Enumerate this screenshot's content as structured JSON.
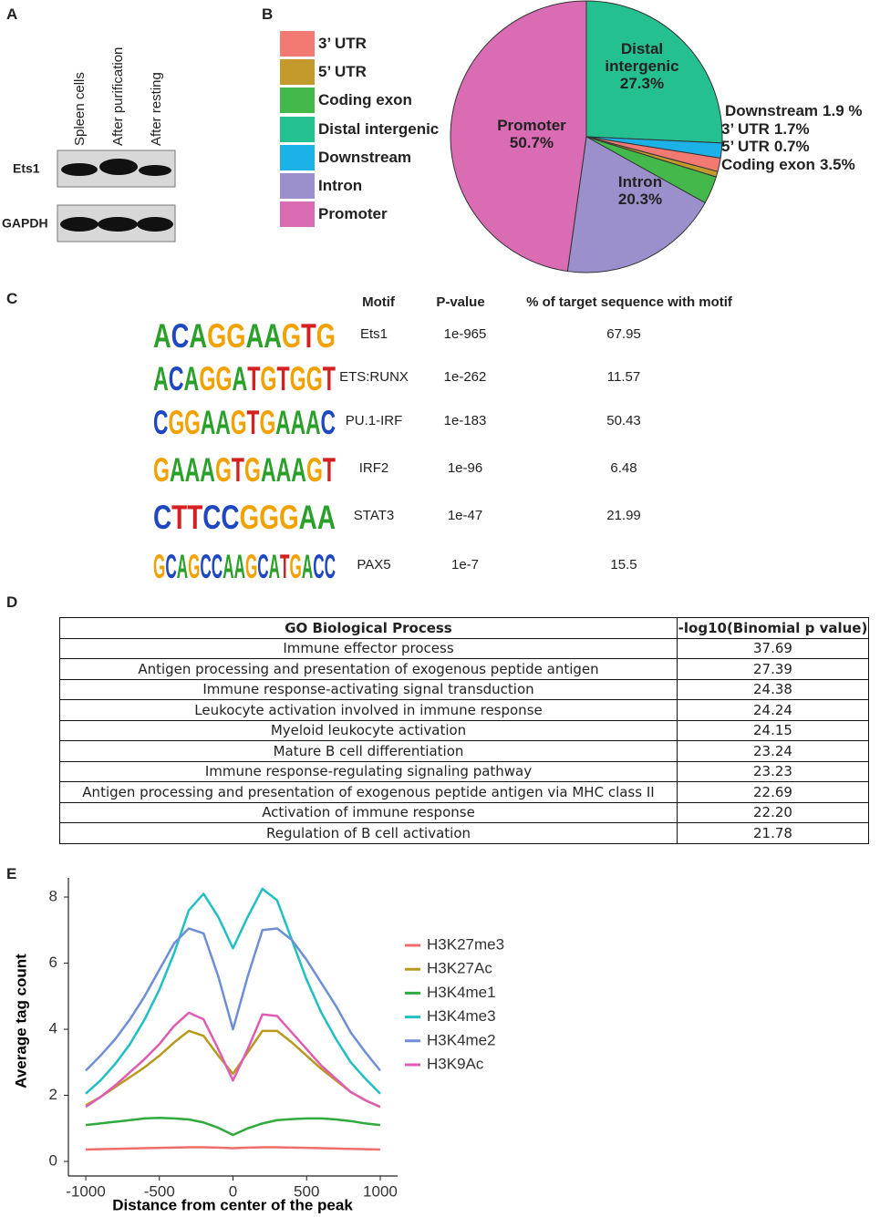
{
  "panels": [
    "A",
    "B",
    "C",
    "D",
    "E"
  ],
  "western_blot": {
    "lanes": [
      "Spleen cells",
      "After purification",
      "After resting"
    ],
    "rows": [
      "Ets1",
      "GAPDH"
    ]
  },
  "chart_data": [
    {
      "type": "pie",
      "categories": [
        "Distal intergenic",
        "Downstream",
        "3’ UTR",
        "5’ UTR",
        "Coding exon",
        "Intron",
        "Promoter"
      ],
      "values": [
        27.3,
        1.9,
        1.7,
        0.7,
        3.5,
        20.3,
        50.7
      ],
      "value_labels": [
        "27.3%",
        "1.9 %",
        "1.7%",
        "0.7%",
        "3.5%",
        "20.3%",
        "50.7%"
      ],
      "colors": [
        "#24c08f",
        "#1cb2e8",
        "#f27a72",
        "#c49a2c",
        "#45b84b",
        "#9c90cc",
        "#d96cb2"
      ],
      "legend": "left"
    },
    {
      "type": "line",
      "x": [
        -1000,
        -900,
        -800,
        -700,
        -600,
        -500,
        -400,
        -300,
        -200,
        -100,
        0,
        100,
        200,
        300,
        400,
        500,
        600,
        700,
        800,
        900,
        1000
      ],
      "series": [
        {
          "name": "H3K27me3",
          "color": "#f06e6a",
          "values": [
            0.36,
            0.37,
            0.38,
            0.39,
            0.4,
            0.41,
            0.42,
            0.43,
            0.43,
            0.42,
            0.4,
            0.42,
            0.43,
            0.43,
            0.42,
            0.41,
            0.4,
            0.39,
            0.38,
            0.37,
            0.36
          ]
        },
        {
          "name": "H3K27Ac",
          "color": "#b89a1e",
          "values": [
            1.7,
            1.95,
            2.25,
            2.55,
            2.85,
            3.2,
            3.6,
            3.95,
            3.8,
            3.2,
            2.65,
            3.3,
            3.95,
            3.95,
            3.6,
            3.2,
            2.8,
            2.45,
            2.1,
            1.85,
            1.65
          ]
        },
        {
          "name": "H3K4me1",
          "color": "#2eab3c",
          "values": [
            1.1,
            1.15,
            1.2,
            1.25,
            1.3,
            1.32,
            1.3,
            1.27,
            1.18,
            1.02,
            0.8,
            1.0,
            1.15,
            1.25,
            1.28,
            1.3,
            1.3,
            1.27,
            1.22,
            1.15,
            1.1
          ]
        },
        {
          "name": "H3K4me3",
          "color": "#1fbfc4",
          "values": [
            2.05,
            2.45,
            2.95,
            3.55,
            4.3,
            5.2,
            6.3,
            7.6,
            8.1,
            7.4,
            6.45,
            7.4,
            8.25,
            7.9,
            6.7,
            5.5,
            4.5,
            3.7,
            3.0,
            2.5,
            2.05
          ]
        },
        {
          "name": "H3K4me2",
          "color": "#6e8fd6",
          "values": [
            2.75,
            3.2,
            3.7,
            4.3,
            5.0,
            5.8,
            6.6,
            7.05,
            6.9,
            5.6,
            4.0,
            5.6,
            7.0,
            7.05,
            6.7,
            6.1,
            5.4,
            4.7,
            3.9,
            3.3,
            2.75
          ]
        },
        {
          "name": "H3K9Ac",
          "color": "#e05cb2",
          "values": [
            1.65,
            1.95,
            2.3,
            2.7,
            3.1,
            3.55,
            4.1,
            4.5,
            4.3,
            3.4,
            2.45,
            3.4,
            4.45,
            4.4,
            3.9,
            3.4,
            2.9,
            2.5,
            2.1,
            1.85,
            1.65
          ]
        }
      ],
      "xlim": [
        -1118,
        1118
      ],
      "ylim": [
        -0.44,
        8.58
      ],
      "xticks": [
        -1000,
        -500,
        0,
        500,
        1000
      ],
      "yticks": [
        0,
        2,
        4,
        6,
        8
      ],
      "xlabel": "Distance from center of the peak",
      "ylabel": "Average tag count",
      "legend": "right"
    }
  ],
  "motif_table": {
    "headers": [
      "Motif",
      "P-value",
      "% of target sequence with motif"
    ],
    "rows": [
      {
        "logo": "ACAGGAAGTG",
        "motif": "Ets1",
        "p_value": "1e-965",
        "percent": 67.95
      },
      {
        "logo": "ACAGGATGTGGT",
        "motif": "ETS:RUNX",
        "p_value": "1e-262",
        "percent": 11.57
      },
      {
        "logo": "CGGAAGTGAAAC",
        "motif": "PU.1-IRF",
        "p_value": "1e-183",
        "percent": 50.43
      },
      {
        "logo": "GAAAGTGAAAGT",
        "motif": "IRF2",
        "p_value": "1e-96",
        "percent": 6.48
      },
      {
        "logo": "CTTCCGGGAA",
        "motif": "STAT3",
        "p_value": "1e-47",
        "percent": 21.99
      },
      {
        "logo": "GCAGCCAAGCATGACC",
        "motif": "PAX5",
        "p_value": "1e-7",
        "percent": 15.5
      }
    ]
  },
  "go_table": {
    "headers": [
      "GO Biological Process",
      "-log10(Binomial p value)"
    ],
    "rows": [
      [
        "Immune effector process",
        37.69
      ],
      [
        "Antigen processing and presentation of exogenous peptide antigen",
        27.39
      ],
      [
        "Immune response-activating signal transduction",
        24.38
      ],
      [
        "Leukocyte activation involved in immune response",
        24.24
      ],
      [
        "Myeloid leukocyte activation",
        24.15
      ],
      [
        "Mature B cell differentiation",
        23.24
      ],
      [
        "Immune response-regulating signaling pathway",
        23.23
      ],
      [
        "Antigen processing and presentation of exogenous peptide antigen via MHC class II",
        22.69
      ],
      [
        "Activation of immune response",
        "22.20"
      ],
      [
        "Regulation of B cell activation",
        21.78
      ]
    ]
  }
}
